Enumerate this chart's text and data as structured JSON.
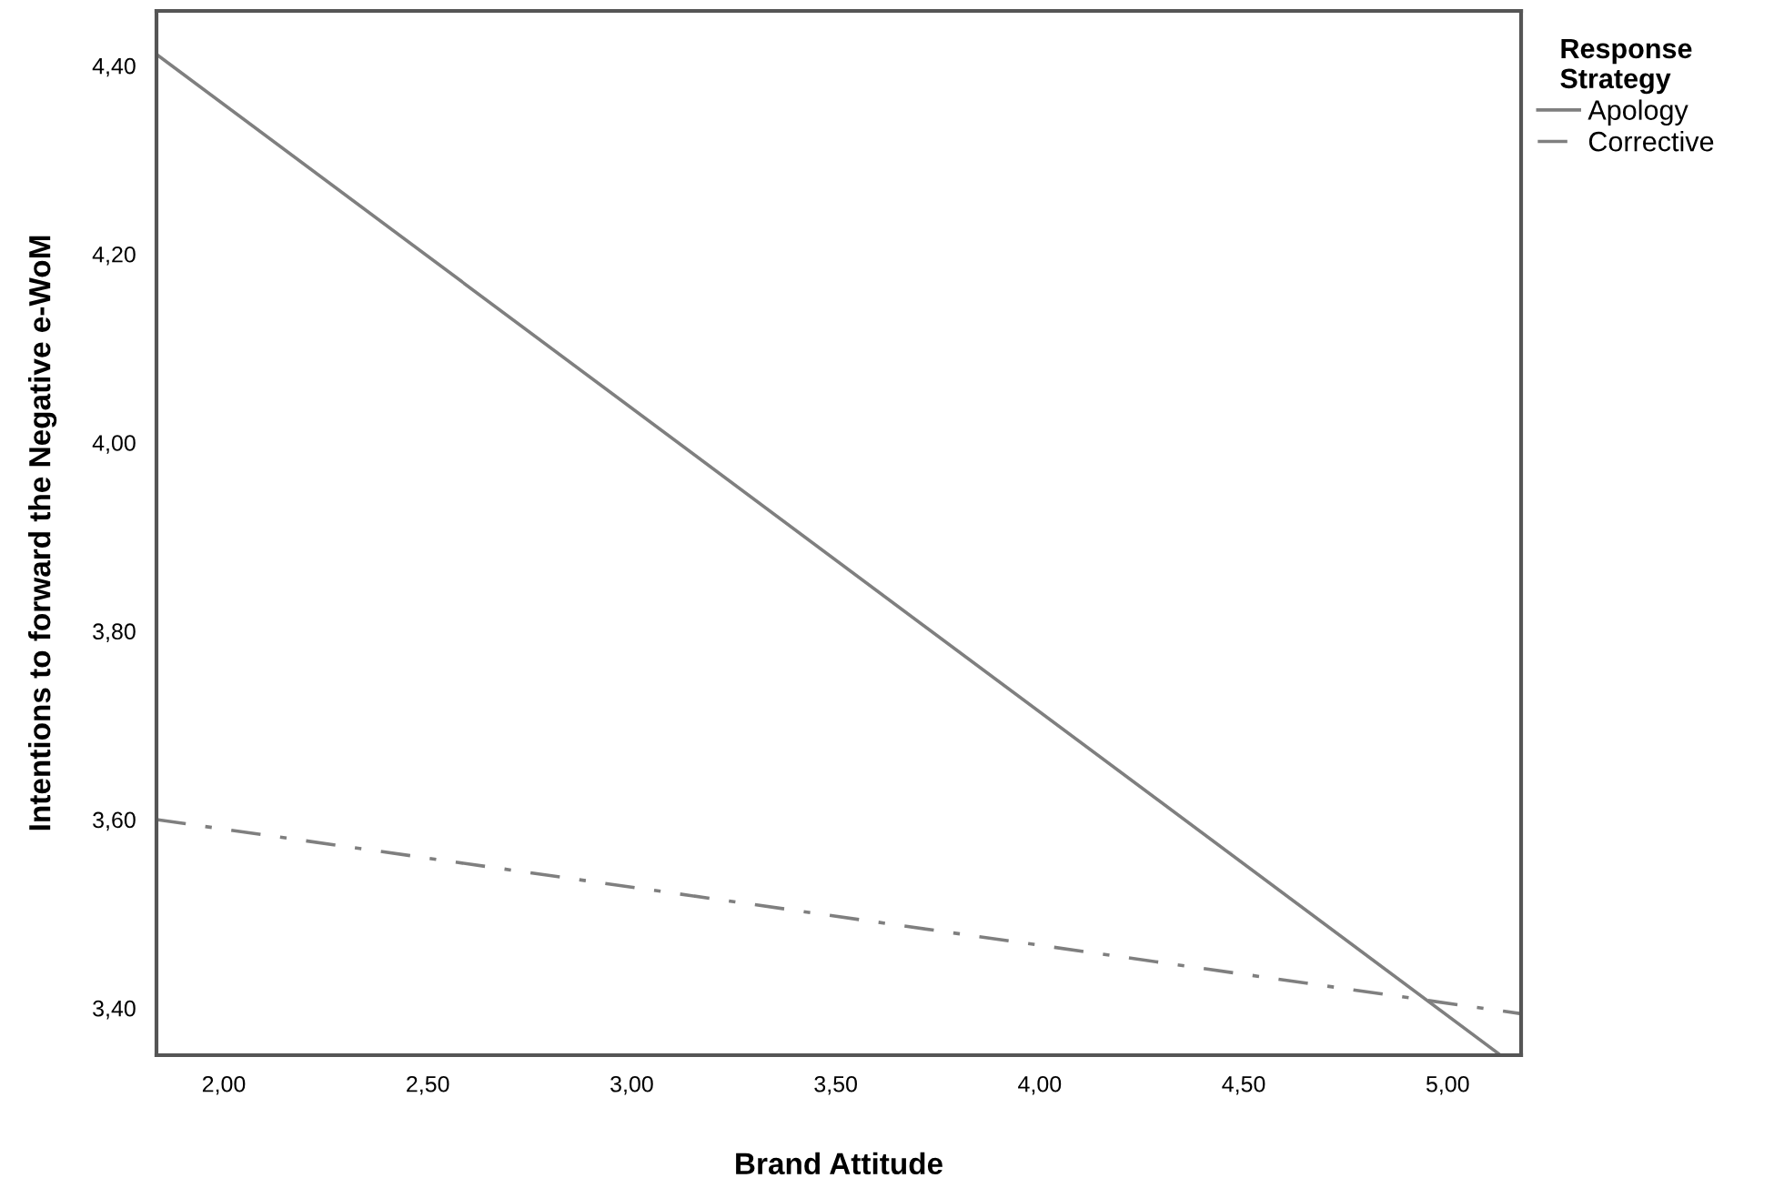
{
  "chart_data": {
    "type": "line",
    "xlabel": "Brand Attitude",
    "ylabel": "Intentions to forward the Negative e-WoM",
    "legend_title": "Response\nStrategy",
    "legend": "top right",
    "grid": false,
    "series": [
      {
        "name": "Apology",
        "color": "#7f7f7f",
        "line_style": "solid",
        "x": [
          1.835,
          5.13
        ],
        "values": [
          4.412,
          3.35
        ]
      },
      {
        "name": "Corrective",
        "color": "#7f7f7f",
        "line_style": "dashdot",
        "x": [
          1.835,
          5.18
        ],
        "values": [
          3.6,
          3.394
        ]
      }
    ],
    "xlim": [
      1.835,
      5.18
    ],
    "ylim": [
      3.35,
      4.458
    ],
    "xticks": [
      {
        "value": 2.0,
        "label": "2,00"
      },
      {
        "value": 2.5,
        "label": "2,50"
      },
      {
        "value": 3.0,
        "label": "3,00"
      },
      {
        "value": 3.5,
        "label": "3,50"
      },
      {
        "value": 4.0,
        "label": "4,00"
      },
      {
        "value": 4.5,
        "label": "4,50"
      },
      {
        "value": 5.0,
        "label": "5,00"
      }
    ],
    "yticks": [
      {
        "value": 3.4,
        "label": "3,40"
      },
      {
        "value": 3.6,
        "label": "3,60"
      },
      {
        "value": 3.8,
        "label": "3,80"
      },
      {
        "value": 4.0,
        "label": "4,00"
      },
      {
        "value": 4.2,
        "label": "4,20"
      },
      {
        "value": 4.4,
        "label": "4,40"
      }
    ]
  }
}
